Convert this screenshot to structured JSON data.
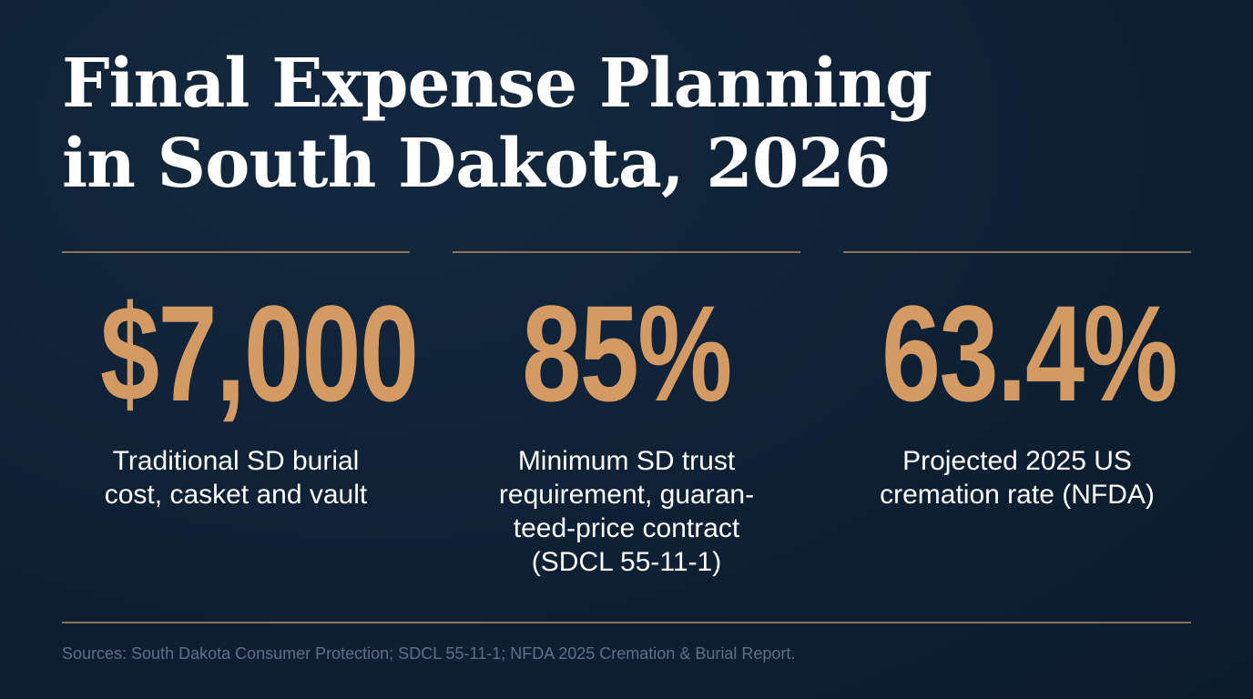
{
  "title": {
    "line1": "Final Expense Planning",
    "line2": "in South Dakota, 2026"
  },
  "stats": [
    {
      "value": "$7,000",
      "description_lines": [
        "Traditional SD burial",
        "cost, casket and vault"
      ]
    },
    {
      "value": "85%",
      "description_lines": [
        "Minimum SD trust",
        "requirement, guaran-",
        "teed-price contract",
        "(SDCL 55-11-1)"
      ]
    },
    {
      "value": "63.4%",
      "description_lines": [
        "Projected 2025 US",
        "cremation rate (NFDA)"
      ]
    }
  ],
  "sources": "Sources: South Dakota Consumer Protection; SDCL 55-11-1; NFDA 2025 Cremation & Burial Report.",
  "colors": {
    "background": "#0f2236",
    "accent": "#d39b63",
    "rule": "#8a7356",
    "text": "#ffffff",
    "muted": "#5d7086"
  }
}
